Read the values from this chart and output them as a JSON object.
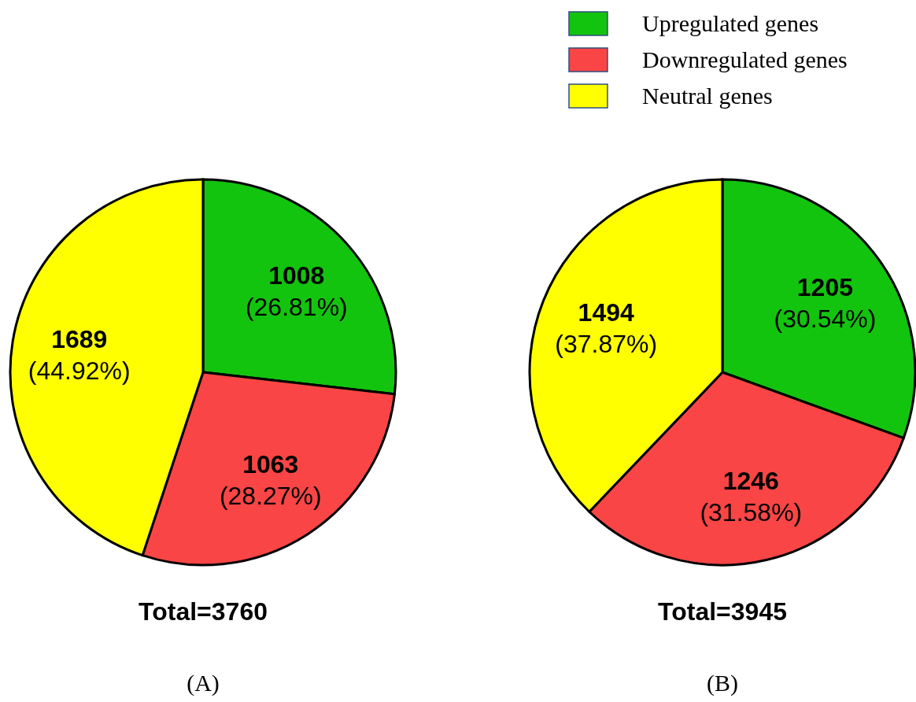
{
  "chart_data": [
    {
      "type": "pie",
      "title": "(A)",
      "categories": [
        "Upregulated genes",
        "Downregulated genes",
        "Neutral genes"
      ],
      "values": [
        1008,
        1063,
        1689
      ],
      "colors": [
        "#13c40f",
        "#f94545",
        "#ffff00"
      ],
      "value_labels": [
        "1008 (26.81%)",
        "1063 (28.27%)",
        "1689 (44.92%)"
      ],
      "annotations": [
        "Total=3760"
      ],
      "legend": "top right"
    },
    {
      "type": "pie",
      "title": "(B)",
      "categories": [
        null,
        null,
        null
      ],
      "values": [
        1205,
        1246,
        1494
      ],
      "colors": [
        "#13c40f",
        "#f94545",
        "#ffff00"
      ],
      "value_labels": [
        "1205 (30.54%)",
        "1246 (31.58%)",
        "1494 (37.87%)"
      ],
      "annotations": [
        "Total=3945"
      ],
      "legend": false
    }
  ]
}
